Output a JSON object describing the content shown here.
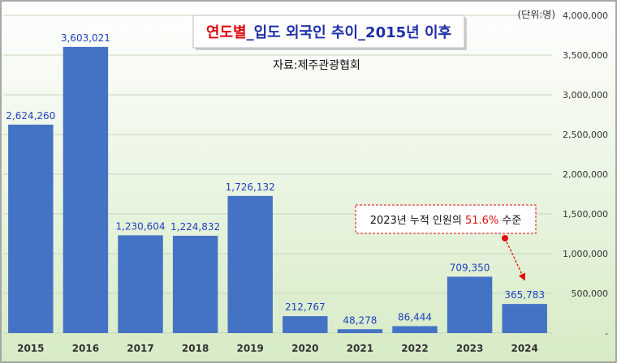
{
  "chart_data": {
    "type": "bar",
    "title": {
      "part1": "연도별",
      "part2": "_입도 외국인 추이_2015년 이후"
    },
    "subtitle": "자료:제주관광협회",
    "unit_label": "(단위:명)",
    "categories": [
      "2015",
      "2016",
      "2017",
      "2018",
      "2019",
      "2020",
      "2021",
      "2022",
      "2023",
      "2024"
    ],
    "values": [
      2624260,
      3603021,
      1230604,
      1224832,
      1726132,
      212767,
      48278,
      86444,
      709350,
      365783
    ],
    "value_labels": [
      "2,624,260",
      "3,603,021",
      "1,230,604",
      "1,224,832",
      "1,726,132",
      "212,767",
      "48,278",
      "86,444",
      "709,350",
      "365,783"
    ],
    "ylim": [
      0,
      4000000
    ],
    "y_ticks": [
      "-",
      "500,000",
      "1,000,000",
      "1,500,000",
      "2,000,000",
      "2,500,000",
      "3,000,000",
      "3,500,000",
      "4,000,000"
    ],
    "grid": true,
    "annotation": {
      "text_before": "2023년 누적 인원의 ",
      "highlight": "51.6%",
      "text_after": " 수준"
    },
    "colors": {
      "bar": "#4472C4",
      "value_label": "#1F3FBF",
      "title_red": "#E0000F",
      "title_blue": "#1F2FA8",
      "highlight_red": "#E01010",
      "plot_bg_top": "#FFFFFF",
      "plot_bg_bottom": "#D6EBC6",
      "grid": "#C8D3BE"
    }
  }
}
